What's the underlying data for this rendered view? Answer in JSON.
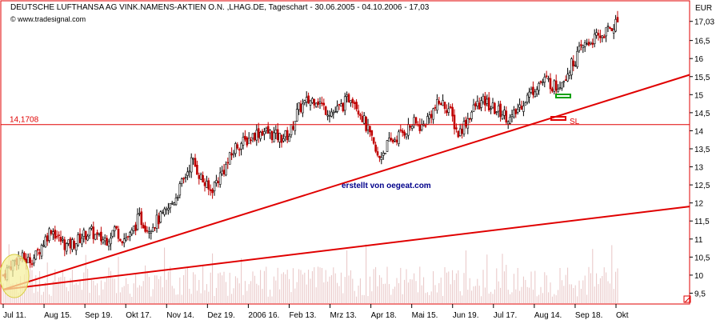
{
  "chart_data": {
    "type": "candlestick",
    "title": "DEUTSCHE LUFTHANSA AG VINK.NAMENS-AKTIEN O.N. ,LHAG.DE, Tageschart - 30.06.2005 - 04.10.2006 - 17,03",
    "source": "© www.tradesignal.com",
    "y_unit": "EUR",
    "ylim": [
      9.2,
      17.6
    ],
    "y_ticks": [
      "9,5",
      "10",
      "10,5",
      "11",
      "11,5",
      "12",
      "12,5",
      "13",
      "13,5",
      "14",
      "14,5",
      "15",
      "15,5",
      "16",
      "16,5",
      "17,03"
    ],
    "x_ticks": [
      "Jul 11.",
      "Aug 15.",
      "Sep 19.",
      "Okt 17.",
      "Nov 14.",
      "Dez 19.",
      "2006 16.",
      "Feb 13.",
      "Mrz 13.",
      "Apr 18.",
      "Mai 15.",
      "Jun 19.",
      "Jul 17.",
      "Aug 14.",
      "Sep 18.",
      "Okt"
    ],
    "horizontal_line": {
      "value": 14.1708,
      "label": "14,1708"
    },
    "annotation": {
      "text": "SL"
    },
    "watermark": "erstellt von oegeat.com",
    "price_path": [
      [
        11.0,
        10.0
      ],
      [
        11.9,
        10.3
      ],
      [
        12.8,
        10.5
      ],
      [
        13.7,
        10.4
      ],
      [
        14.6,
        10.5
      ],
      [
        15.5,
        10.9
      ],
      [
        16.4,
        11.3
      ],
      [
        17.3,
        11.0
      ],
      [
        18.2,
        10.8
      ],
      [
        19.1,
        10.9
      ],
      [
        20.0,
        11.1
      ],
      [
        20.9,
        11.2
      ],
      [
        21.8,
        11.0
      ],
      [
        22.7,
        11.0
      ],
      [
        23.6,
        11.3
      ],
      [
        24.5,
        11.0
      ],
      [
        25.4,
        11.1
      ],
      [
        26.3,
        11.6
      ],
      [
        27.3,
        11.3
      ],
      [
        28.3,
        11.5
      ],
      [
        29.3,
        11.7
      ],
      [
        30.3,
        12.1
      ],
      [
        31.3,
        12.6
      ],
      [
        32.3,
        13.2
      ],
      [
        33.3,
        12.7
      ],
      [
        34.3,
        12.3
      ],
      [
        35.3,
        12.7
      ],
      [
        36.3,
        13.1
      ],
      [
        37.3,
        13.6
      ],
      [
        38.3,
        13.7
      ],
      [
        39.3,
        13.9
      ],
      [
        40.3,
        14.0
      ],
      [
        41.3,
        13.9
      ],
      [
        42.3,
        13.8
      ],
      [
        43.3,
        13.9
      ],
      [
        44.3,
        14.6
      ],
      [
        45.3,
        14.8
      ],
      [
        46.3,
        14.9
      ],
      [
        47.3,
        14.6
      ],
      [
        48.3,
        14.5
      ],
      [
        49.3,
        14.7
      ],
      [
        50.3,
        15.0
      ],
      [
        51.3,
        14.5
      ],
      [
        52.3,
        13.9
      ],
      [
        53.3,
        13.2
      ],
      [
        54.3,
        13.6
      ],
      [
        55.3,
        13.8
      ],
      [
        56.3,
        14.0
      ],
      [
        57.3,
        14.2
      ],
      [
        58.3,
        14.1
      ],
      [
        59.3,
        14.5
      ],
      [
        60.3,
        14.8
      ],
      [
        61.3,
        14.6
      ],
      [
        62.3,
        13.9
      ],
      [
        63.3,
        14.3
      ],
      [
        64.3,
        14.7
      ],
      [
        65.3,
        14.8
      ],
      [
        66.3,
        14.6
      ],
      [
        67.3,
        14.5
      ],
      [
        68.3,
        14.3
      ],
      [
        69.3,
        14.7
      ],
      [
        70.3,
        15.0
      ],
      [
        71.3,
        15.3
      ],
      [
        72.3,
        15.4
      ],
      [
        73.3,
        15.2
      ],
      [
        74.3,
        15.5
      ],
      [
        75.3,
        15.9
      ],
      [
        76.3,
        16.3
      ],
      [
        77.3,
        16.5
      ],
      [
        78.3,
        16.6
      ],
      [
        79.3,
        16.8
      ],
      [
        80.3,
        17.03
      ]
    ],
    "trend_lines": [
      {
        "from": [
          11.0,
          9.6
        ],
        "to": [
          88.0,
          15.55
        ]
      },
      {
        "from": [
          11.0,
          9.6
        ],
        "to": [
          88.0,
          11.9
        ]
      }
    ]
  },
  "colors": {
    "frame": "#e00000",
    "trend": "#e00000",
    "candle_up": "#000000",
    "candle_down": "#c00000",
    "volume": "#e8c4c4",
    "watermark": "#00008b",
    "highlight": "#f5f0a0",
    "green_marker": "#00a000"
  }
}
